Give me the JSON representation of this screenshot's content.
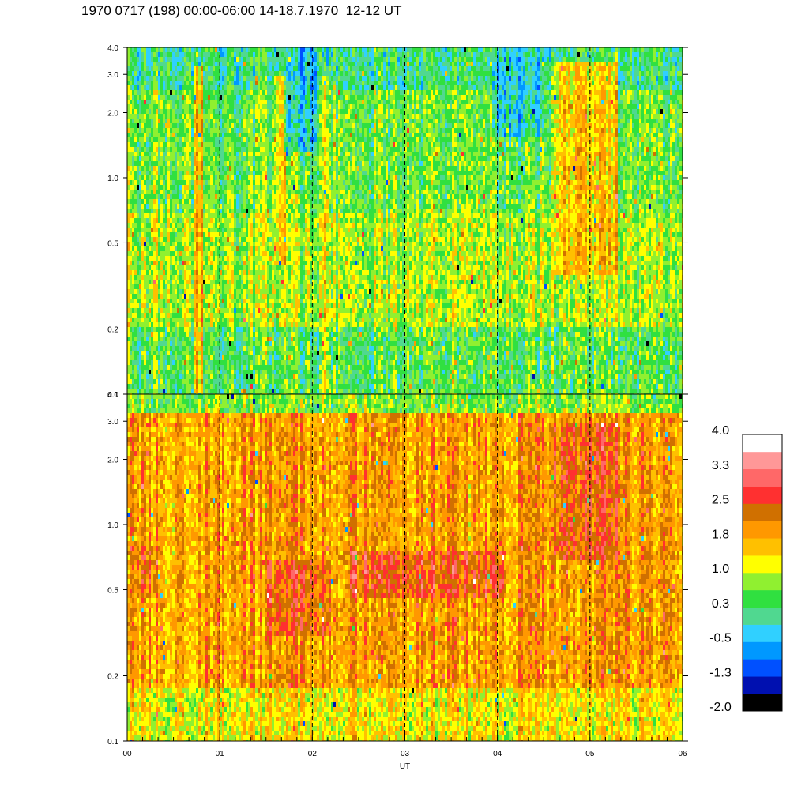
{
  "chart_data": {
    "type": "heatmap",
    "title": "1970 0717 (198) 00:00-06:00 14-18.7.1970  12-12 UT",
    "xlabel": "UT",
    "x_ticks": [
      "00",
      "01",
      "02",
      "03",
      "04",
      "05",
      "06"
    ],
    "xlim": [
      0,
      6
    ],
    "y_scale": "log",
    "ylim": [
      0.1,
      4.0
    ],
    "y_ticks": [
      "4.0",
      "3.0",
      "2.0",
      "1.0",
      "0.5",
      "0.2",
      "0.1"
    ],
    "y_tick_values": [
      4.0,
      3.0,
      2.0,
      1.0,
      0.5,
      0.2,
      0.1
    ],
    "vertical_dashed_lines_at_hours": [
      1,
      2,
      3,
      4,
      5
    ],
    "panels": [
      {
        "name": "upper",
        "dominant_level": 0.6,
        "features": [
          {
            "x_start": 0.72,
            "x_end": 0.82,
            "y_min": 0.1,
            "y_max": 3.2,
            "level": 1.9
          },
          {
            "x_start": 1.58,
            "x_end": 1.72,
            "y_min": 0.4,
            "y_max": 3.0,
            "level": 1.7
          },
          {
            "x_start": 2.1,
            "x_end": 2.18,
            "y_min": 0.1,
            "y_max": 3.0,
            "level": 1.6
          },
          {
            "x_start": 4.6,
            "x_end": 5.3,
            "y_min": 0.35,
            "y_max": 3.4,
            "level": 1.8
          },
          {
            "x_start": 1.7,
            "x_end": 2.05,
            "y_min": 1.3,
            "y_max": 4.0,
            "level": -0.6
          },
          {
            "x_start": 3.95,
            "x_end": 4.5,
            "y_min": 1.5,
            "y_max": 4.0,
            "level": -0.4
          }
        ]
      },
      {
        "name": "lower",
        "dominant_level": 1.9,
        "features": [
          {
            "x_start": 1.5,
            "x_end": 2.2,
            "y_min": 0.3,
            "y_max": 0.7,
            "level": 2.6
          },
          {
            "x_start": 2.4,
            "x_end": 4.1,
            "y_min": 0.45,
            "y_max": 0.75,
            "level": 2.7
          },
          {
            "x_start": 4.6,
            "x_end": 5.3,
            "y_min": 0.7,
            "y_max": 3.0,
            "level": 2.6
          },
          {
            "x_start": 0.1,
            "x_end": 0.3,
            "y_min": 0.45,
            "y_max": 0.8,
            "level": 2.5
          }
        ]
      }
    ],
    "colorbar": {
      "labels": [
        "4.0",
        "3.3",
        "2.5",
        "1.8",
        "1.0",
        "0.3",
        "-0.5",
        "-1.3",
        "-2.0"
      ],
      "colors": [
        "#000000",
        "#0010b0",
        "#0050ff",
        "#0098ff",
        "#30d0ff",
        "#50d890",
        "#30e040",
        "#90f030",
        "#ffff00",
        "#ffc000",
        "#ff9800",
        "#d07000",
        "#ff3030",
        "#ff6868",
        "#ff9898",
        "#ffffff"
      ]
    }
  }
}
